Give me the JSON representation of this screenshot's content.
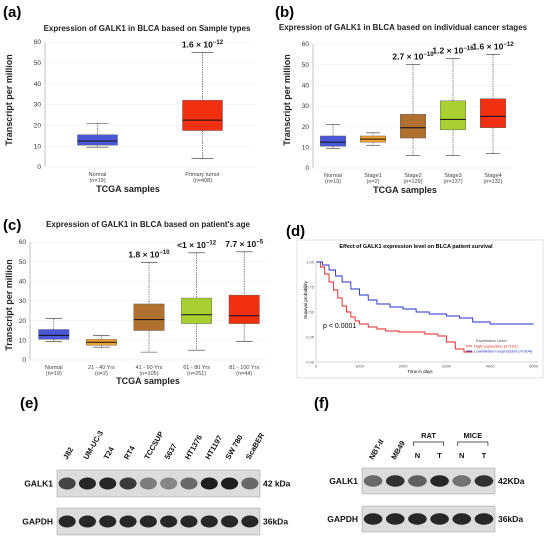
{
  "panel_labels": [
    "(a)",
    "(b)",
    "(c)",
    "(d)",
    "(e)",
    "(f)"
  ],
  "chart_data": [
    {
      "type": "box",
      "panel": "(a)",
      "title": "Expression of GALK1 in BLCA based on Sample types",
      "xlabel": "TCGA samples",
      "ylabel": "Transcript per million",
      "ylim": [
        0,
        60
      ],
      "yticks": [
        0,
        10,
        20,
        30,
        40,
        50,
        60
      ],
      "categories": [
        "Normal",
        "Primary tumor"
      ],
      "category_n": [
        "(n=19)",
        "(n=408)"
      ],
      "colors": [
        "#4a58d8",
        "#f03010"
      ],
      "boxes": [
        {
          "min": 9.5,
          "q1": 10.5,
          "median": 12.5,
          "q3": 15.5,
          "max": 21
        },
        {
          "min": 4,
          "q1": 17.5,
          "median": 22.5,
          "q3": 32,
          "max": 55
        }
      ],
      "annotations": [
        {
          "index": 1,
          "base": "1.6 × 10",
          "exp": "−12"
        }
      ]
    },
    {
      "type": "box",
      "panel": "(b)",
      "title": "Expression of GALK1 in BLCA based on individual cancer stages",
      "xlabel": "TCGA samples",
      "ylabel": "Transcript per million",
      "ylim": [
        0,
        60
      ],
      "yticks": [
        0,
        10,
        20,
        30,
        40,
        50,
        60
      ],
      "categories": [
        "Normal",
        "Stage1",
        "Stage2",
        "Stage3",
        "Stage4"
      ],
      "category_n": [
        "(n=19)",
        "(n=2)",
        "(n=129)",
        "(n=137)",
        "(n=132)"
      ],
      "colors": [
        "#4a58d8",
        "#f0a030",
        "#b07030",
        "#a8d030",
        "#f03010"
      ],
      "boxes": [
        {
          "min": 9.5,
          "q1": 10.5,
          "median": 12.5,
          "q3": 15.5,
          "max": 21
        },
        {
          "min": 11,
          "q1": 12.5,
          "median": 14,
          "q3": 15.5,
          "max": 17
        },
        {
          "min": 6,
          "q1": 14.5,
          "median": 19.5,
          "q3": 26,
          "max": 50
        },
        {
          "min": 6,
          "q1": 18.5,
          "median": 23.5,
          "q3": 32.5,
          "max": 53
        },
        {
          "min": 7,
          "q1": 19.5,
          "median": 25,
          "q3": 33.5,
          "max": 55
        }
      ],
      "annotations": [
        {
          "index": 2,
          "base": "2.7 × 10",
          "exp": "−10"
        },
        {
          "index": 3,
          "base": "1.2 × 10",
          "exp": "−16"
        },
        {
          "index": 4,
          "base": "1.6 × 10",
          "exp": "−12"
        }
      ]
    },
    {
      "type": "box",
      "panel": "(c)",
      "title": "Expression of GALK1 in BLCA based on patient's age",
      "xlabel": "TCGA samples",
      "ylabel": "Transcript per million",
      "ylim": [
        0,
        60
      ],
      "yticks": [
        0,
        10,
        20,
        30,
        40,
        50,
        60
      ],
      "categories": [
        "Normal",
        "21 - 40 Yrs",
        "41 - 60 Yrs",
        "61 - 80 Yrs",
        "81 - 100 Yrs"
      ],
      "category_n": [
        "(n=19)",
        "(n=2)",
        "(n=105)",
        "(n=251)",
        "(n=44)"
      ],
      "colors": [
        "#4a58d8",
        "#f0a030",
        "#b07030",
        "#a8d030",
        "#f03010"
      ],
      "boxes": [
        {
          "min": 9.5,
          "q1": 10.5,
          "median": 12.5,
          "q3": 15.5,
          "max": 21
        },
        {
          "min": 6.5,
          "q1": 7.5,
          "median": 9,
          "q3": 10.5,
          "max": 12.5
        },
        {
          "min": 4,
          "q1": 15,
          "median": 20.5,
          "q3": 28.5,
          "max": 49.5
        },
        {
          "min": 5,
          "q1": 18.5,
          "median": 23,
          "q3": 31.5,
          "max": 54.5
        },
        {
          "min": 9.5,
          "q1": 18.5,
          "median": 22.5,
          "q3": 33,
          "max": 55
        }
      ],
      "annotations": [
        {
          "index": 2,
          "base": "1.8 × 10",
          "exp": "−10"
        },
        {
          "index": 3,
          "base": "<1 × 10",
          "exp": "−12"
        },
        {
          "index": 4,
          "base": "7.7 × 10",
          "exp": "−5"
        }
      ]
    },
    {
      "type": "line",
      "panel": "(d)",
      "title": "Effect of GALK1 expression level on BLCA patient survival",
      "xlabel": "Time in days",
      "ylabel": "Survival probability",
      "xlim": [
        0,
        5100
      ],
      "ylim": [
        0,
        1.0
      ],
      "xticks": [
        0,
        1000,
        2000,
        3000,
        4000,
        5000
      ],
      "yticks": [
        "0.00",
        "0.25",
        "0.50",
        "0.75",
        "1.00"
      ],
      "pvalue_text": "p < 0.0001",
      "legend_title": "Expression Level",
      "legend_position": "bottom-right",
      "series": [
        {
          "name": "High expression (n=102)",
          "color": "#e02020",
          "points": [
            [
              0,
              1.0
            ],
            [
              100,
              0.95
            ],
            [
              200,
              0.88
            ],
            [
              300,
              0.8
            ],
            [
              400,
              0.72
            ],
            [
              500,
              0.64
            ],
            [
              600,
              0.56
            ],
            [
              700,
              0.5
            ],
            [
              800,
              0.45
            ],
            [
              900,
              0.41
            ],
            [
              1000,
              0.38
            ],
            [
              1200,
              0.35
            ],
            [
              1400,
              0.33
            ],
            [
              1600,
              0.31
            ],
            [
              1900,
              0.3
            ],
            [
              2200,
              0.3
            ],
            [
              2500,
              0.28
            ],
            [
              2800,
              0.26
            ],
            [
              3000,
              0.2
            ],
            [
              3200,
              0.13
            ],
            [
              3400,
              0.1
            ],
            [
              3600,
              0.1
            ]
          ]
        },
        {
          "name": "Low/Medium expression (n=304)",
          "color": "#2030c8",
          "points": [
            [
              0,
              1.0
            ],
            [
              150,
              0.97
            ],
            [
              300,
              0.92
            ],
            [
              450,
              0.86
            ],
            [
              600,
              0.8
            ],
            [
              800,
              0.73
            ],
            [
              1000,
              0.67
            ],
            [
              1200,
              0.62
            ],
            [
              1400,
              0.58
            ],
            [
              1700,
              0.55
            ],
            [
              2000,
              0.53
            ],
            [
              2300,
              0.5
            ],
            [
              2600,
              0.48
            ],
            [
              3000,
              0.46
            ],
            [
              3300,
              0.44
            ],
            [
              3600,
              0.4
            ],
            [
              4000,
              0.38
            ],
            [
              4500,
              0.38
            ],
            [
              5000,
              0.38
            ]
          ]
        }
      ]
    }
  ],
  "blots": {
    "e": {
      "lanes": [
        "J82",
        "UM-UC-3",
        "T24",
        "RT4",
        "TCCSUP",
        "5637",
        "HT1376",
        "HT1197",
        "SW 780",
        "ScaBER"
      ],
      "rows": [
        {
          "name": "GALK1",
          "size": "42 kDa",
          "intensity": [
            0.75,
            0.9,
            0.9,
            0.8,
            0.45,
            0.4,
            0.55,
            0.95,
            0.95,
            0.55
          ]
        },
        {
          "name": "GAPDH",
          "size": "36kDa",
          "intensity": [
            0.9,
            0.9,
            0.9,
            0.9,
            0.9,
            0.9,
            0.9,
            0.9,
            0.9,
            0.9
          ]
        }
      ]
    },
    "f": {
      "lanes": [
        "NBT-II",
        "MB49",
        "N",
        "T",
        "N",
        "T"
      ],
      "groups": [
        {
          "name": "RAT"
        },
        {
          "name": "MICE"
        }
      ],
      "rows": [
        {
          "name": "GALK1",
          "size": "42KDa",
          "intensity": [
            0.55,
            0.85,
            0.6,
            0.9,
            0.5,
            0.85
          ]
        },
        {
          "name": "GAPDH",
          "size": "36kDa",
          "intensity": [
            0.9,
            0.9,
            0.9,
            0.9,
            0.9,
            0.9
          ]
        }
      ]
    }
  }
}
